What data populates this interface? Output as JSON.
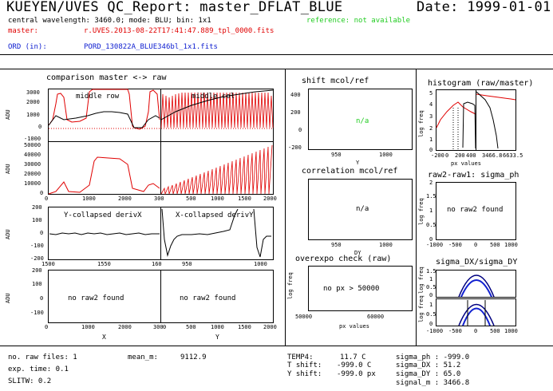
{
  "header": {
    "title": "KUEYEN/UVES QC_Report: master_DFLAT_BLUE",
    "date": "Date: 1999-01-01",
    "line2": "central wavelength: 3460.0; mode: BLU; bin: 1x1",
    "reference": "reference: not available",
    "master_label": "master:",
    "master_file": "r.UVES.2013-08-22T17:41:47.889_tpl_0000.fits",
    "ord_label": "ORD (in):",
    "ord_file": "PORD_130822A_BLUE346bl_1x1.fits"
  },
  "panels": {
    "comparison_title": "comparison master <-> raw",
    "middle_row": "middle row",
    "middle_col": "middle col",
    "ycollapsed": "Y-collapsed derivX",
    "xcollapsed": "X-collapsed derivY",
    "no_raw2_a": "no raw2 found",
    "no_raw2_b": "no raw2 found",
    "x_label": "X",
    "y_label": "Y",
    "adu": "ADU",
    "shift_title": "shift mcol/ref",
    "na1": "n/a",
    "shift_xlabel": "Y",
    "corr_title": "correlation mcol/ref",
    "na2": "n/a",
    "corr_xlabel": "DY",
    "overexpo_title": "overexpo check (raw)",
    "no_px": "no px > 50000",
    "px_values": "px values",
    "log_freq": "log freq",
    "hist_title": "histogram (raw/master)",
    "hist_xlabel": "px values",
    "raw2_title": "raw2-raw1: sigma_ph",
    "no_raw2_c": "no raw2 found",
    "sigma_title": "sigma_DX/sigma_DY"
  },
  "ticks": {
    "p1_y": [
      "3000",
      "2000",
      "1000",
      "0",
      "-1000"
    ],
    "p2_y": [
      "50000",
      "40000",
      "30000",
      "20000",
      "10000",
      "0"
    ],
    "p3_y": [
      "200",
      "100",
      "0",
      "-100",
      "-200"
    ],
    "p4_y": [
      "200",
      "100",
      "0",
      "-100"
    ],
    "x_row": [
      "0",
      "1000",
      "2000",
      "300"
    ],
    "x_col": [
      "500",
      "1000",
      "1500",
      "2000"
    ],
    "x_p3": [
      "1500",
      "1550",
      "160"
    ],
    "x_p3b": [
      "950",
      "1000"
    ],
    "x_p4a": [
      "0",
      "1000",
      "2000",
      "300"
    ],
    "x_p4b": [
      "0",
      "500",
      "1000",
      "1500",
      "2000"
    ],
    "shift_y": [
      "400",
      "200",
      "0",
      "-200"
    ],
    "shift_x": [
      "950",
      "1000"
    ],
    "corr_x": [
      "950",
      "1000"
    ],
    "over_x": [
      "50000",
      "60000"
    ],
    "hist_y": [
      "5",
      "4",
      "3",
      "2",
      "1",
      "0"
    ],
    "hist_x": [
      "-200",
      "0",
      "200",
      "400",
      "3466.8",
      "6633.5"
    ],
    "raw2_y": [
      "2",
      "1.5",
      "1",
      "0.5",
      "0"
    ],
    "raw2_x": [
      "-1000",
      "-500",
      "0",
      "500",
      "1000"
    ],
    "sig_y1": [
      "1.5",
      "1",
      "0.5",
      "0"
    ],
    "sig_y2": [
      "1",
      "0.5",
      "0"
    ],
    "sig_x": [
      "-1000",
      "-500",
      "0",
      "500",
      "1000"
    ]
  },
  "footer": {
    "raw_files": "no. raw files: 1",
    "exp_time": "exp. time: 0.1",
    "slitw": "SLITW: 0.2",
    "mean_m_label": "mean_m:",
    "mean_m_val": "9112.9",
    "temp4": "TEMP4:",
    "temp4_val": "11.7 C",
    "tshift": "T shift:",
    "tshift_val": "-999.0 C",
    "yshift": "Y shift:",
    "yshift_val": "-999.0 px",
    "sigma_ph": "sigma_ph  : -999.0",
    "sigma_dx": "sigma_DX  : 51.2",
    "sigma_dy": "sigma_DY  : 65.0",
    "signal_m": "signal_m  : 3466.8"
  },
  "chart_data": [
    {
      "type": "line",
      "title": "comparison master <-> raw",
      "xlabel": "",
      "ylabel": "ADU",
      "ylim": [
        -1000,
        3000
      ],
      "series": [
        {
          "name": "middle row",
          "values": []
        }
      ]
    },
    {
      "type": "bar",
      "title": "histogram (raw/master)",
      "xlabel": "px values",
      "ylabel": "log freq",
      "ylim": [
        0,
        5
      ]
    }
  ]
}
